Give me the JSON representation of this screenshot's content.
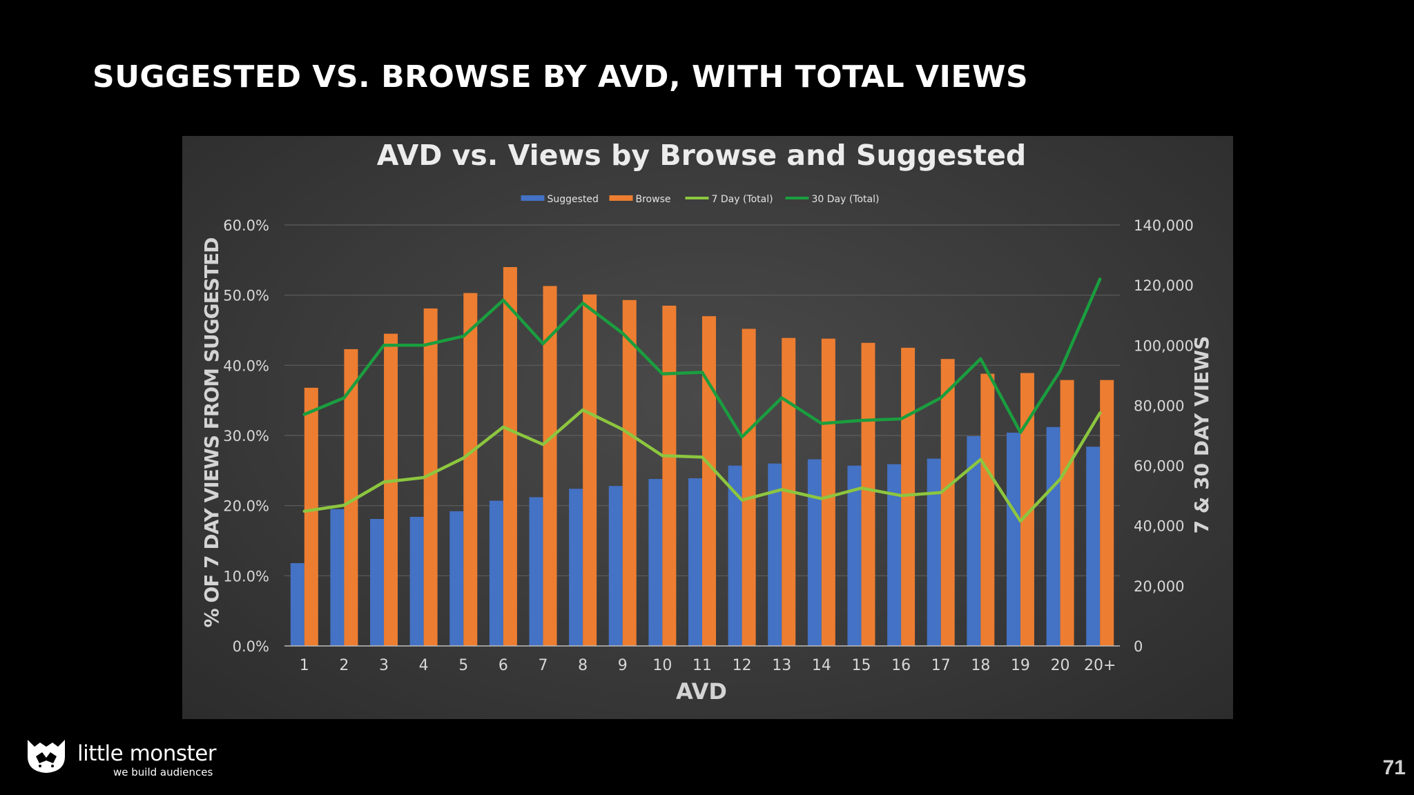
{
  "slide": {
    "title": "SUGGESTED VS. BROWSE BY AVD, WITH TOTAL VIEWS",
    "page_number": "71"
  },
  "logo": {
    "name": "little monster",
    "tagline": "we build audiences"
  },
  "colors": {
    "suggested": "#4472c4",
    "browse": "#ed7d31",
    "seven_day": "#8cc63f",
    "thirty_day": "#1a9e3f"
  },
  "chart_data": {
    "type": "bar",
    "title": "AVD vs. Views by Browse and Suggested",
    "xlabel": "AVD",
    "ylabel": "% OF 7 DAY VIEWS FROM SUGGESTED",
    "y2label": "7 & 30 DAY VIEWS",
    "ylim": [
      0,
      60
    ],
    "y2lim": [
      0,
      140000
    ],
    "yticks": [
      "0.0%",
      "10.0%",
      "20.0%",
      "30.0%",
      "40.0%",
      "50.0%",
      "60.0%"
    ],
    "y2ticks": [
      "0",
      "20,000",
      "40,000",
      "60,000",
      "80,000",
      "100,000",
      "120,000",
      "140,000"
    ],
    "legend_position": "top",
    "grid": true,
    "categories": [
      "1",
      "2",
      "3",
      "4",
      "5",
      "6",
      "7",
      "8",
      "9",
      "10",
      "11",
      "12",
      "13",
      "14",
      "15",
      "16",
      "17",
      "18",
      "19",
      "20",
      "20+"
    ],
    "series": [
      {
        "name": "Suggested",
        "kind": "bar",
        "axis": "left",
        "values": [
          11.8,
          19.5,
          18.1,
          18.4,
          19.2,
          20.7,
          21.2,
          22.4,
          22.8,
          23.8,
          23.9,
          25.7,
          26.0,
          26.6,
          25.7,
          25.9,
          26.7,
          29.9,
          30.4,
          31.2,
          28.4
        ]
      },
      {
        "name": "Browse",
        "kind": "bar",
        "axis": "left",
        "values": [
          36.8,
          42.3,
          44.5,
          48.1,
          50.3,
          54.0,
          51.3,
          50.1,
          49.3,
          48.5,
          47.0,
          45.2,
          43.9,
          43.8,
          43.2,
          42.5,
          40.9,
          38.8,
          38.9,
          37.9,
          37.9
        ]
      },
      {
        "name": "7 Day (Total)",
        "kind": "line",
        "axis": "right",
        "values": [
          44800,
          46800,
          54500,
          56000,
          62500,
          72800,
          67000,
          78500,
          72000,
          63300,
          62800,
          48500,
          52000,
          49000,
          52500,
          50000,
          51000,
          62000,
          41500,
          55500,
          77500
        ]
      },
      {
        "name": "30 Day (Total)",
        "kind": "line",
        "axis": "right",
        "values": [
          77000,
          82500,
          100000,
          100000,
          103000,
          115000,
          100500,
          114000,
          104000,
          90500,
          91000,
          69500,
          82500,
          74000,
          75000,
          75500,
          82500,
          95500,
          71000,
          91500,
          122000
        ]
      }
    ]
  }
}
